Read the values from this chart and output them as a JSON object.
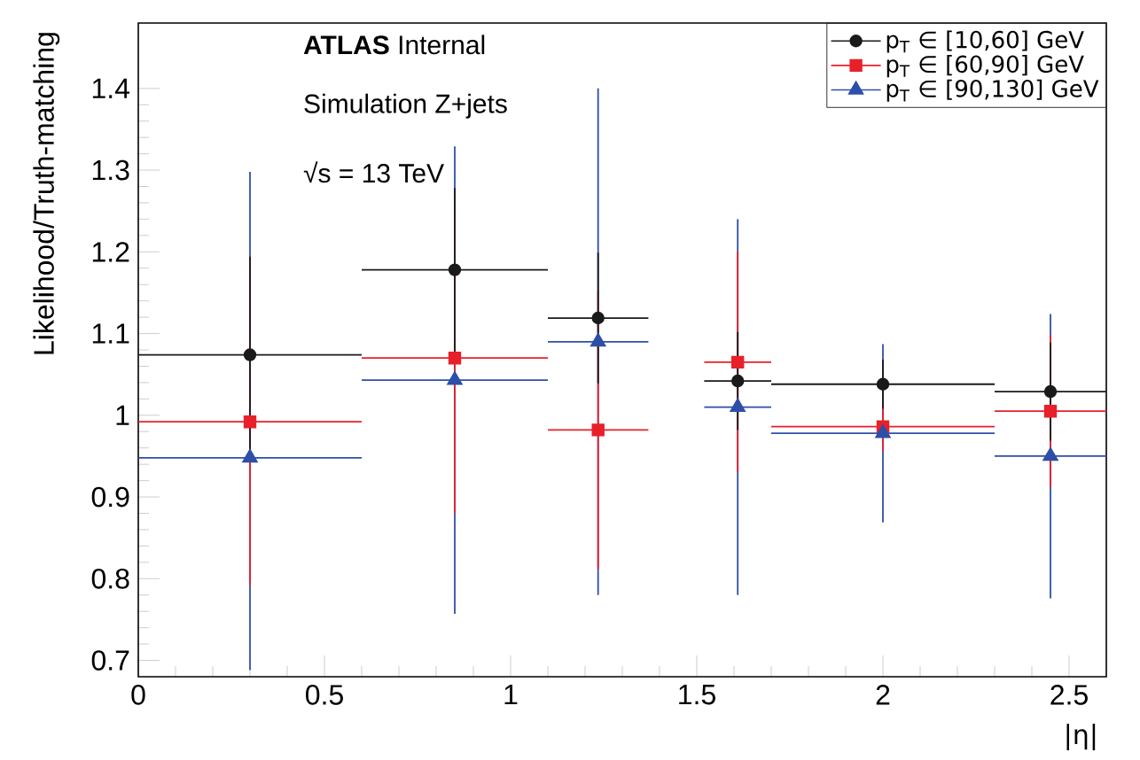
{
  "chart_data": {
    "type": "scatter",
    "xlabel": "|η|",
    "ylabel": "Likelihood/Truth-matching",
    "annotations": [
      "**ATLAS** Internal",
      "Simulation Z+jets",
      "√s = 13 TeV"
    ],
    "x": [
      0.3,
      0.85,
      1.235,
      1.61,
      2.0,
      2.45
    ],
    "series": [
      {
        "name": "p$_{T}$ ∈ [10,60] GeV",
        "color": "#1a1a1a",
        "marker": "circle",
        "values": [
          1.074,
          1.178,
          1.119,
          1.042,
          1.038,
          1.029
        ],
        "errors": [
          0.12,
          0.1,
          0.08,
          0.06,
          0.03,
          0.06
        ],
        "xerrors": [
          0.3,
          0.25,
          0.135,
          0.09,
          0.3,
          0.15
        ]
      },
      {
        "name": "p$_{T}$ ∈ [60,90] GeV",
        "color": "#e8202a",
        "marker": "square",
        "values": [
          0.992,
          1.07,
          0.982,
          1.065,
          0.986,
          1.005
        ],
        "errors": [
          0.2,
          0.19,
          0.17,
          0.135,
          0.03,
          0.093
        ],
        "xerrors": [
          0.3,
          0.25,
          0.135,
          0.09,
          0.3,
          0.15
        ]
      },
      {
        "name": "p$_{T}$ ∈ [90,130] GeV",
        "color": "#2d4fa8",
        "marker": "triangle",
        "values": [
          0.948,
          1.043,
          1.09,
          1.01,
          0.978,
          0.95
        ],
        "errors": [
          [
            0.688,
            1.298
          ],
          0.286,
          0.31,
          0.23,
          0.109,
          0.174
        ],
        "xerrors": [
          0.3,
          0.25,
          0.135,
          0.09,
          0.3,
          0.15
        ]
      }
    ],
    "xlim": [
      0,
      2.6
    ],
    "ylim": [
      0.68,
      1.48
    ],
    "xticks": [
      0,
      0.5,
      1,
      1.5,
      2,
      2.5
    ],
    "yticks": [
      0.7,
      0.8,
      0.9,
      1,
      1.1,
      1.2,
      1.3,
      1.4
    ],
    "legend": "top right",
    "grid": false
  }
}
